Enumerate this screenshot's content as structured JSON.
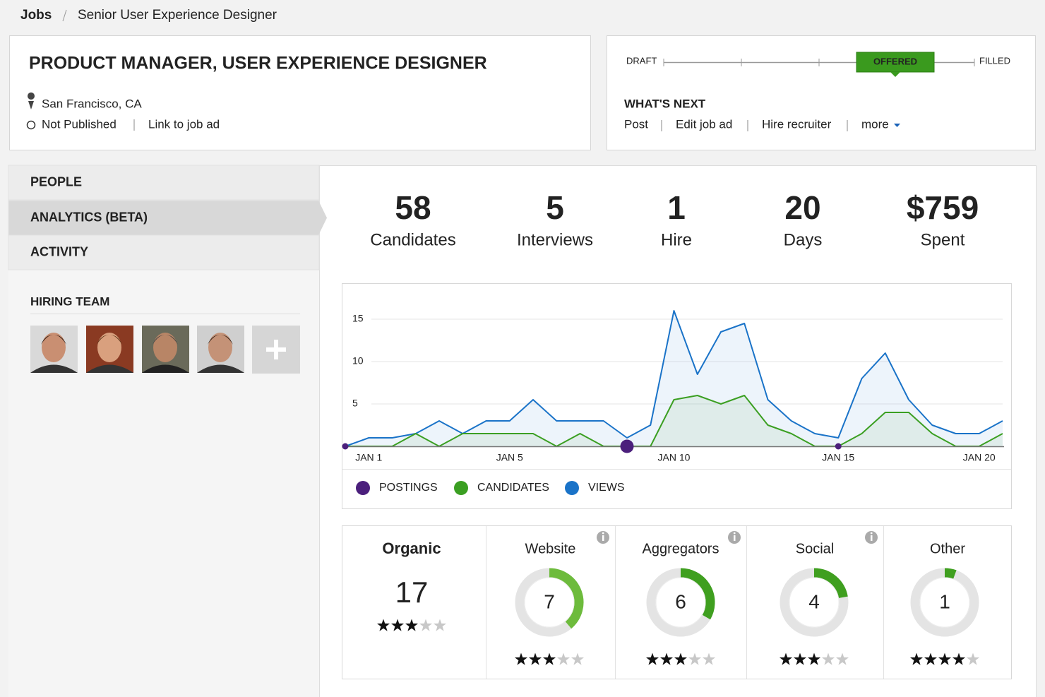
{
  "breadcrumb": {
    "root": "Jobs",
    "current": "Senior User Experience Designer"
  },
  "job": {
    "title": "PRODUCT MANAGER, USER EXPERIENCE DESIGNER",
    "location": "San Francisco, CA",
    "status": "Not Published",
    "link": "Link to job ad"
  },
  "pipeline": {
    "start": "DRAFT",
    "current": "OFFERED",
    "end": "FILLED"
  },
  "next": {
    "heading": "WHAT'S NEXT",
    "actions": [
      "Post",
      "Edit job ad",
      "Hire recruiter",
      "more"
    ]
  },
  "nav": [
    "PEOPLE",
    "ANALYTICS (BETA)",
    "ACTIVITY"
  ],
  "team": {
    "heading": "HIRING TEAM"
  },
  "stats": [
    {
      "value": "58",
      "label": "Candidates"
    },
    {
      "value": "5",
      "label": "Interviews"
    },
    {
      "value": "1",
      "label": "Hire"
    },
    {
      "value": "20",
      "label": "Days"
    },
    {
      "value": "$759",
      "label": "Spent"
    }
  ],
  "chart": {
    "type": "line",
    "categories": [
      null,
      "JAN 1",
      null,
      null,
      null,
      null,
      null,
      "JAN 5",
      null,
      null,
      null,
      null,
      null,
      null,
      "JAN 10",
      null,
      null,
      null,
      null,
      null,
      null,
      "JAN 15",
      null,
      null,
      null,
      null,
      null,
      "JAN 20",
      null
    ],
    "ylim": [
      0,
      17
    ],
    "yticks": [
      5,
      10,
      15
    ],
    "grid": true,
    "series": [
      {
        "name": "POSTINGS",
        "color": "#4b1f7c",
        "values": [
          1,
          null,
          null,
          null,
          null,
          null,
          null,
          null,
          null,
          null,
          null,
          null,
          3,
          null,
          null,
          null,
          null,
          null,
          null,
          null,
          null,
          1,
          null,
          null,
          null,
          null,
          null,
          null,
          null
        ]
      },
      {
        "name": "CANDIDATES",
        "color": "#3b9f22",
        "values": [
          0,
          0,
          0,
          1.5,
          0,
          1.5,
          1.5,
          1.5,
          1.5,
          0,
          1.5,
          0,
          0,
          0,
          5.5,
          6,
          5,
          6,
          2.5,
          1.5,
          0,
          0,
          1.5,
          4,
          4,
          1.5,
          0,
          0,
          1.5
        ]
      },
      {
        "name": "VIEWS",
        "color": "#1a73c8",
        "values": [
          0,
          1,
          1,
          1.5,
          3,
          1.5,
          3,
          3,
          5.5,
          3,
          3,
          3,
          1,
          2.5,
          16,
          8.5,
          13.5,
          14.5,
          5.5,
          3,
          1.5,
          1,
          8,
          11,
          5.5,
          2.5,
          1.5,
          1.5,
          3
        ]
      }
    ]
  },
  "sources": {
    "rating_max": 5,
    "organic": {
      "name": "Organic",
      "value": 17,
      "rating": 3
    },
    "items": [
      {
        "name": "Website",
        "value": 7,
        "rating": 3,
        "info": true
      },
      {
        "name": "Aggregators",
        "value": 6,
        "rating": 3,
        "info": true
      },
      {
        "name": "Social",
        "value": 4,
        "rating": 3,
        "info": true
      },
      {
        "name": "Other",
        "value": 1,
        "rating": 4,
        "info": false
      }
    ]
  }
}
